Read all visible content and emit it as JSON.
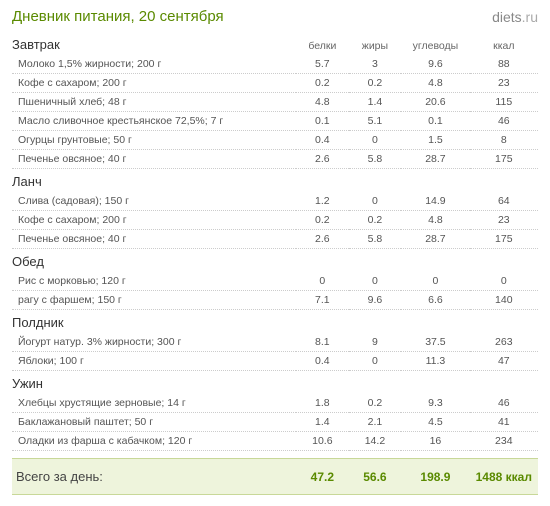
{
  "page_title": "Дневник питания, 20 сентября",
  "logo": {
    "name": "diets",
    "tld": ".ru"
  },
  "columns": {
    "protein": "белки",
    "fat": "жиры",
    "carbs": "углеводы",
    "kcal": "ккал"
  },
  "meals": [
    {
      "name": "Завтрак",
      "items": [
        {
          "name": "Молоко 1,5% жирности; 200 г",
          "p": "5.7",
          "f": "3",
          "c": "9.6",
          "k": "88"
        },
        {
          "name": "Кофе с сахаром; 200 г",
          "p": "0.2",
          "f": "0.2",
          "c": "4.8",
          "k": "23"
        },
        {
          "name": "Пшеничный хлеб; 48 г",
          "p": "4.8",
          "f": "1.4",
          "c": "20.6",
          "k": "115"
        },
        {
          "name": "Масло сливочное крестьянское 72,5%; 7 г",
          "p": "0.1",
          "f": "5.1",
          "c": "0.1",
          "k": "46"
        },
        {
          "name": "Огурцы грунтовые; 50 г",
          "p": "0.4",
          "f": "0",
          "c": "1.5",
          "k": "8"
        },
        {
          "name": "Печенье овсяное; 40 г",
          "p": "2.6",
          "f": "5.8",
          "c": "28.7",
          "k": "175"
        }
      ]
    },
    {
      "name": "Ланч",
      "items": [
        {
          "name": "Слива (садовая); 150 г",
          "p": "1.2",
          "f": "0",
          "c": "14.9",
          "k": "64"
        },
        {
          "name": "Кофе с сахаром; 200 г",
          "p": "0.2",
          "f": "0.2",
          "c": "4.8",
          "k": "23"
        },
        {
          "name": "Печенье овсяное; 40 г",
          "p": "2.6",
          "f": "5.8",
          "c": "28.7",
          "k": "175"
        }
      ]
    },
    {
      "name": "Обед",
      "items": [
        {
          "name": "Рис с морковью; 120 г",
          "p": "0",
          "f": "0",
          "c": "0",
          "k": "0"
        },
        {
          "name": "рагу с фаршем; 150 г",
          "p": "7.1",
          "f": "9.6",
          "c": "6.6",
          "k": "140"
        }
      ]
    },
    {
      "name": "Полдник",
      "items": [
        {
          "name": "Йогурт натур. 3% жирности; 300 г",
          "p": "8.1",
          "f": "9",
          "c": "37.5",
          "k": "263"
        },
        {
          "name": "Яблоки; 100 г",
          "p": "0.4",
          "f": "0",
          "c": "11.3",
          "k": "47"
        }
      ]
    },
    {
      "name": "Ужин",
      "items": [
        {
          "name": "Хлебцы хрустящие зерновые; 14 г",
          "p": "1.8",
          "f": "0.2",
          "c": "9.3",
          "k": "46"
        },
        {
          "name": "Баклажановый паштет; 50 г",
          "p": "1.4",
          "f": "2.1",
          "c": "4.5",
          "k": "41"
        },
        {
          "name": "Оладки из фарша с кабачком; 120 г",
          "p": "10.6",
          "f": "14.2",
          "c": "16",
          "k": "234"
        }
      ]
    }
  ],
  "totals": {
    "label": "Всего за день:",
    "p": "47.2",
    "f": "56.6",
    "c": "198.9",
    "k": "1488 ккал"
  },
  "styling": {
    "accent_color": "#5a8a00",
    "totals_bg": "#eef4dc",
    "totals_border": "#c8d898",
    "row_divider": "#cccccc",
    "text_color": "#555555",
    "header_text": "#666666"
  }
}
